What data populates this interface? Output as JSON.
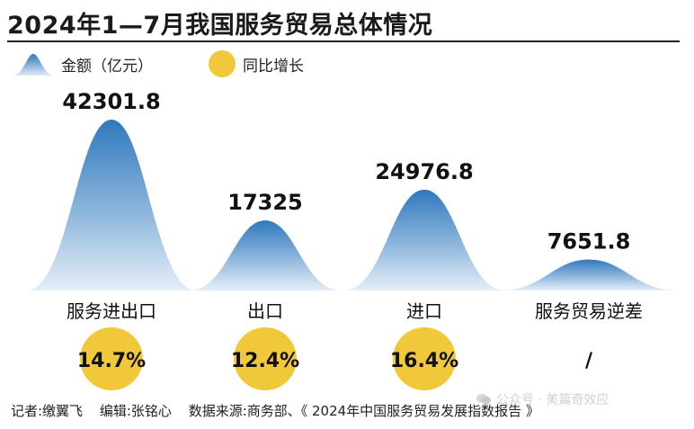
{
  "title": "2024年1—7月我国服务贸易总体情况",
  "legend": {
    "amount": "金额（亿元）",
    "growth": "同比增长"
  },
  "colors": {
    "mountain_top": "#2f79bd",
    "mountain_bottom": "#dfeaf5",
    "growth_circle": "#f0c83a",
    "text": "#111111"
  },
  "chart_data": {
    "type": "area",
    "categories": [
      "服务进出口",
      "出口",
      "进口",
      "服务贸易逆差"
    ],
    "values": [
      42301.8,
      17325,
      24976.8,
      7651.8
    ],
    "value_labels": [
      "42301.8",
      "17325",
      "24976.8",
      "7651.8"
    ],
    "growth": [
      "14.7%",
      "12.4%",
      "16.4%",
      "/"
    ],
    "growth_has_circle": [
      true,
      true,
      true,
      false
    ],
    "unit": "亿元",
    "ylim": [
      0,
      42301.8
    ]
  },
  "footer": {
    "reporter": "记者:缴翼飞",
    "editor": "编辑:张铭心",
    "source": "数据来源:商务部、《 2024年中国服务贸易发展指数报告 》"
  },
  "watermark": "公众号 · 美篇奇效应"
}
